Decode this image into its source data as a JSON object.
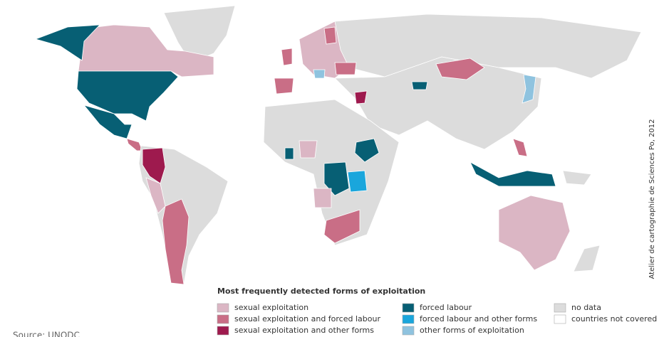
{
  "legend": {
    "title": "Most frequently detected forms of exploitation",
    "items": [
      {
        "label": "sexual exploitation",
        "color": "#dbb6c4"
      },
      {
        "label": "sexual exploitation and forced labour",
        "color": "#c96e86"
      },
      {
        "label": "sexual exploitation and other forms",
        "color": "#9e1a4e"
      },
      {
        "label": "forced labour",
        "color": "#075f74"
      },
      {
        "label": "forced labour and other forms",
        "color": "#1aa6dc"
      },
      {
        "label": "other forms of exploitation",
        "color": "#8fc3df"
      },
      {
        "label": "no data",
        "color": "#dcdcdc"
      },
      {
        "label": "countries not covered",
        "color": "#ffffff"
      }
    ]
  },
  "credit": "Atelier de cartographie de Sciences Po, 2012",
  "source": "Source: UNODC"
}
